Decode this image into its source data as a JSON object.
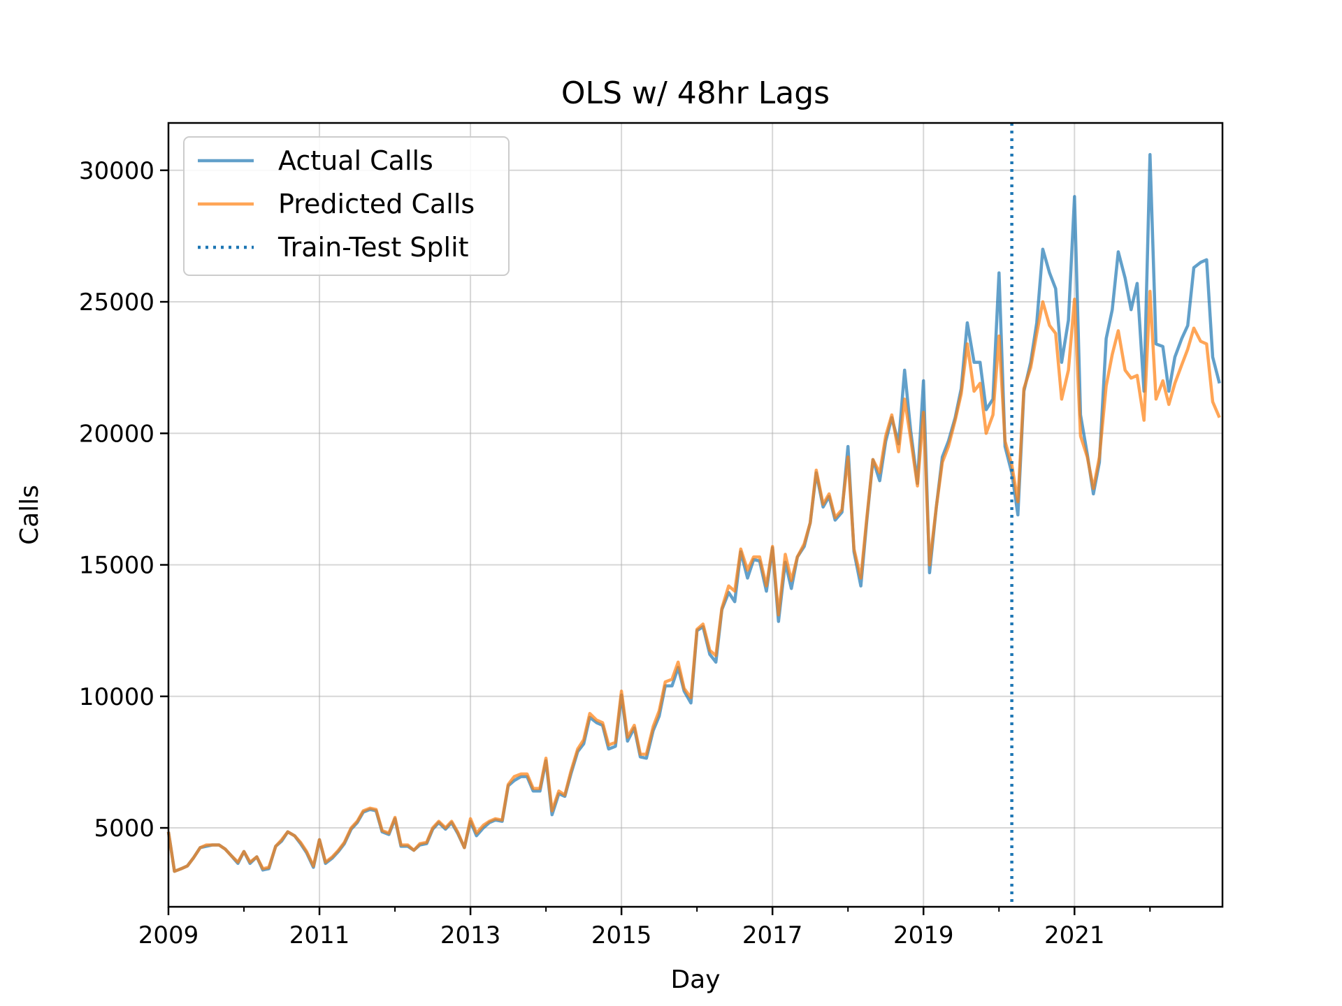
{
  "chart_data": {
    "type": "line",
    "title": "OLS w/ 48hr Lags",
    "xlabel": "Day",
    "ylabel": "Calls",
    "xlim": [
      2009.0,
      2022.96
    ],
    "ylim": [
      2000,
      31800
    ],
    "x_ticks": [
      2009,
      2011,
      2013,
      2015,
      2017,
      2019,
      2021
    ],
    "x_ticks_minor": [
      2010,
      2012,
      2014,
      2016,
      2018,
      2020,
      2022
    ],
    "y_ticks": [
      5000,
      10000,
      15000,
      20000,
      25000,
      30000
    ],
    "grid": true,
    "legend_position": "upper-left",
    "colors": {
      "actual": "#1f77b4",
      "predicted": "#ff7f0e",
      "split": "#1f77b4"
    },
    "split_x": 2020.17,
    "split_label": "Train-Test Split",
    "x": [
      2009.0,
      2009.08,
      2009.17,
      2009.25,
      2009.33,
      2009.42,
      2009.5,
      2009.58,
      2009.67,
      2009.75,
      2009.83,
      2009.92,
      2010.0,
      2010.08,
      2010.17,
      2010.25,
      2010.33,
      2010.42,
      2010.5,
      2010.58,
      2010.67,
      2010.75,
      2010.83,
      2010.92,
      2011.0,
      2011.08,
      2011.17,
      2011.25,
      2011.33,
      2011.42,
      2011.5,
      2011.58,
      2011.67,
      2011.75,
      2011.83,
      2011.92,
      2012.0,
      2012.08,
      2012.17,
      2012.25,
      2012.33,
      2012.42,
      2012.5,
      2012.58,
      2012.67,
      2012.75,
      2012.83,
      2012.92,
      2013.0,
      2013.08,
      2013.17,
      2013.25,
      2013.33,
      2013.42,
      2013.5,
      2013.58,
      2013.67,
      2013.75,
      2013.83,
      2013.92,
      2014.0,
      2014.08,
      2014.17,
      2014.25,
      2014.33,
      2014.42,
      2014.5,
      2014.58,
      2014.67,
      2014.75,
      2014.83,
      2014.92,
      2015.0,
      2015.08,
      2015.17,
      2015.25,
      2015.33,
      2015.42,
      2015.5,
      2015.58,
      2015.67,
      2015.75,
      2015.83,
      2015.92,
      2016.0,
      2016.08,
      2016.17,
      2016.25,
      2016.33,
      2016.42,
      2016.5,
      2016.58,
      2016.67,
      2016.75,
      2016.83,
      2016.92,
      2017.0,
      2017.08,
      2017.17,
      2017.25,
      2017.33,
      2017.42,
      2017.5,
      2017.58,
      2017.67,
      2017.75,
      2017.83,
      2017.92,
      2018.0,
      2018.08,
      2018.17,
      2018.25,
      2018.33,
      2018.42,
      2018.5,
      2018.58,
      2018.67,
      2018.75,
      2018.83,
      2018.92,
      2019.0,
      2019.08,
      2019.17,
      2019.25,
      2019.33,
      2019.42,
      2019.5,
      2019.58,
      2019.67,
      2019.75,
      2019.83,
      2019.92,
      2020.0,
      2020.08,
      2020.17,
      2020.25,
      2020.33,
      2020.42,
      2020.5,
      2020.58,
      2020.67,
      2020.75,
      2020.83,
      2020.92,
      2021.0,
      2021.08,
      2021.17,
      2021.25,
      2021.33,
      2021.42,
      2021.5,
      2021.58,
      2021.67,
      2021.75,
      2021.83,
      2021.92,
      2022.0,
      2022.08,
      2022.17,
      2022.25,
      2022.33,
      2022.42,
      2022.5,
      2022.58,
      2022.67,
      2022.75,
      2022.83,
      2022.92
    ],
    "series": [
      {
        "name": "Actual Calls",
        "values": [
          4850,
          3350,
          3450,
          3550,
          3850,
          4250,
          4300,
          4350,
          4350,
          4200,
          3950,
          3650,
          4100,
          3650,
          3900,
          3400,
          3450,
          4300,
          4500,
          4850,
          4700,
          4400,
          4050,
          3500,
          4550,
          3650,
          3850,
          4100,
          4400,
          4950,
          5200,
          5600,
          5700,
          5650,
          4850,
          4750,
          5350,
          4300,
          4300,
          4150,
          4350,
          4400,
          4950,
          5200,
          4950,
          5200,
          4800,
          4250,
          5250,
          4700,
          5000,
          5200,
          5300,
          5250,
          6600,
          6800,
          6950,
          6950,
          6400,
          6400,
          7550,
          5500,
          6300,
          6200,
          7050,
          7900,
          8200,
          9200,
          9000,
          8900,
          8000,
          8100,
          10050,
          8300,
          8800,
          7700,
          7650,
          8700,
          9250,
          10400,
          10400,
          11100,
          10200,
          9750,
          12500,
          12650,
          11600,
          11300,
          13300,
          13950,
          13600,
          15500,
          14500,
          15200,
          15150,
          14000,
          15650,
          12850,
          15100,
          14100,
          15300,
          15700,
          16600,
          18500,
          17200,
          17600,
          16700,
          17000,
          19500,
          15500,
          14200,
          16700,
          19000,
          18200,
          19700,
          20600,
          19600,
          22400,
          20100,
          18100,
          22000,
          14700,
          17200,
          19100,
          19700,
          20600,
          21700,
          24200,
          22700,
          22700,
          20900,
          21300,
          26100,
          19500,
          18500,
          16900,
          21600,
          22700,
          24200,
          27000,
          26100,
          25500,
          22700,
          24300,
          29000,
          20700,
          19200,
          17700,
          18900,
          23600,
          24700,
          26900,
          25900,
          24700,
          25700,
          21600,
          30600,
          23400,
          23300,
          21600,
          22900,
          23600,
          24100,
          26300,
          26500,
          26600,
          22900,
          21900
        ]
      },
      {
        "name": "Predicted Calls",
        "values": [
          4850,
          3350,
          3450,
          3550,
          3850,
          4250,
          4350,
          4350,
          4350,
          4200,
          3950,
          3700,
          4100,
          3700,
          3900,
          3450,
          3500,
          4300,
          4550,
          4850,
          4700,
          4450,
          4100,
          3550,
          4550,
          3700,
          3900,
          4150,
          4450,
          5000,
          5250,
          5650,
          5750,
          5700,
          4900,
          4800,
          5400,
          4350,
          4350,
          4150,
          4400,
          4450,
          5000,
          5250,
          5000,
          5250,
          4850,
          4250,
          5350,
          4800,
          5100,
          5250,
          5350,
          5300,
          6650,
          6950,
          7050,
          7050,
          6500,
          6500,
          7650,
          5650,
          6400,
          6250,
          7150,
          8000,
          8350,
          9350,
          9100,
          9000,
          8150,
          8250,
          10200,
          8450,
          8900,
          7800,
          7800,
          8850,
          9450,
          10550,
          10650,
          11300,
          10300,
          9950,
          12550,
          12750,
          11750,
          11550,
          13350,
          14200,
          14000,
          15600,
          14800,
          15300,
          15300,
          14200,
          15700,
          13100,
          15400,
          14400,
          15300,
          15800,
          16600,
          18600,
          17300,
          17700,
          16800,
          17100,
          19100,
          15600,
          14500,
          16800,
          19000,
          18500,
          19900,
          20700,
          19300,
          21300,
          19800,
          18000,
          20800,
          15000,
          17200,
          18900,
          19500,
          20500,
          21500,
          23400,
          21600,
          21900,
          20000,
          20700,
          23700,
          19700,
          18800,
          17400,
          21700,
          22500,
          23800,
          25000,
          24100,
          23800,
          21300,
          22400,
          25100,
          19900,
          19100,
          17900,
          19100,
          21800,
          23000,
          23900,
          22400,
          22100,
          22200,
          20500,
          25400,
          21300,
          22000,
          21100,
          21900,
          22600,
          23200,
          24000,
          23500,
          23400,
          21200,
          20600
        ]
      }
    ]
  }
}
